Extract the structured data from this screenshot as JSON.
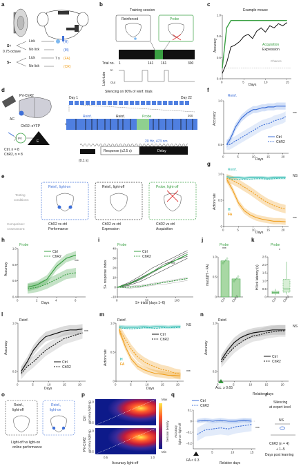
{
  "panels": {
    "a": {
      "label": "a",
      "s_plus": "S+",
      "s_minus": "S−",
      "octave": "0.75 octave",
      "lick": "Lick",
      "no_lick": "No lick",
      "hit": "(H)",
      "miss": "(M)",
      "fa": "(FA)",
      "cr": "(CR)",
      "timeout": "7 s"
    },
    "b": {
      "label": "b",
      "title": "Training session",
      "reinforced": "Reinforced",
      "probe": "Probe",
      "trial_no": "Trial no.",
      "t1": "1",
      "t141": "141",
      "t161": "161",
      "t300": "300",
      "lick_tube": "Lick-tube",
      "in": "In",
      "out": "Out"
    },
    "c": {
      "label": "c",
      "title": "Example mouse",
      "ylabel": "Accuracy",
      "xlabel": "Days",
      "acquisition": "Acquisition",
      "expression": "Expression",
      "chance": "Chance",
      "yticks": [
        "0.4",
        "0.6",
        "0.8",
        "1.0"
      ],
      "xticks": [
        "0",
        "5",
        "10",
        "15"
      ]
    },
    "d": {
      "label": "d",
      "pv_chr2": "PV-ChR2",
      "ac": "AC",
      "chr2_eyfp": "ChR2–eYFP",
      "pv": "PV",
      "e": "E",
      "ctrl_n": "Ctrl, n = 8",
      "chr2_n": "ChR2, n = 8",
      "silencing": "Silencing on 90% of reinf. trials",
      "day1": "Day 1",
      "day22": "Day 22",
      "reinf1": "Reinf.",
      "reinf2": "Reinf.",
      "probe": "Probe",
      "one": "1",
      "three_hundred": "300",
      "laser": "20 Hz, 473 nm",
      "response": "Response (≤2.5 s)",
      "delay": "Delay",
      "tick": "(0.1 s)"
    },
    "e": {
      "label": "e",
      "testing": "Testing",
      "conditions": "conditions:",
      "comparison": "Comparison:",
      "assessment": "Assessment:",
      "c1_title": "Reinf., light-on",
      "c2_title": "Reinf., light-off",
      "c3_title": "Probe, light-off",
      "c1_cmp": "ChR2 vs ctrl",
      "c1_ass": "Performance",
      "c2_cmp": "ChR2 vs ctrl",
      "c2_ass": "Expression",
      "c3_cmp": "ChR2 vs ctrl",
      "c3_ass": "Acquisition"
    },
    "f": {
      "label": "f",
      "tag": "Reinf.",
      "ylabel": "Accuracy",
      "xlabel": "Days",
      "ctrl": "Ctrl",
      "chr2": "ChR2",
      "sig": "***",
      "yticks": [
        "0.5",
        "1.0"
      ],
      "xticks": [
        "0",
        "5",
        "10",
        "15",
        "20"
      ]
    },
    "g": {
      "label": "g",
      "tag": "Reinf.",
      "ylabel": "Action rate",
      "xlabel": "Days",
      "h": "H",
      "fa": "FA",
      "ns": "NS",
      "sig": "***",
      "yticks": [
        "0",
        "0.5",
        "1.0"
      ],
      "xticks": [
        "0",
        "5",
        "10",
        "15",
        "20"
      ]
    },
    "h": {
      "label": "h",
      "tag": "Probe",
      "ylabel": "Accuracy",
      "xlabel": "Days",
      "ctrl": "Ctrl",
      "chr2": "ChR2",
      "sig": "***",
      "yticks": [
        "0.4",
        "0.6",
        "0.8",
        "1.0"
      ],
      "xticks": [
        "0",
        "2",
        "4",
        "6"
      ]
    },
    "i": {
      "label": "i",
      "tag": "Probe",
      "ylabel": "S+ response index",
      "xlabel": "S+ trials (days 1–6)",
      "ctrl": "Ctrl",
      "chr2": "ChR2",
      "sig": "***",
      "yticks": [
        "−10",
        "0",
        "10",
        "20",
        "30",
        "40"
      ],
      "xticks": [
        "0",
        "50",
        "100"
      ]
    },
    "j": {
      "label": "j",
      "tag": "Probe",
      "ylabel": "maxΔ(H − FA)",
      "sig": "***",
      "cats": [
        "Ctrl",
        "ChR2"
      ],
      "yticks": [
        "0",
        "0.5",
        "1.0"
      ]
    },
    "k": {
      "label": "k",
      "tag": "Probe",
      "ylabel": "H lick latency (s)",
      "sig": "*",
      "cats": [
        "Ctrl",
        "ChR2"
      ],
      "yticks": [
        "0",
        "0.5",
        "1.0",
        "1.5",
        "2.0",
        "2.5"
      ]
    },
    "l": {
      "label": "l",
      "tag": "Reinf.",
      "ylabel": "Accuracy",
      "xlabel": "Days",
      "ctrl": "Ctrl",
      "chr2": "ChR2",
      "sig": "***",
      "yticks": [
        "0.5",
        "1.0"
      ],
      "xticks": [
        "0",
        "5",
        "10",
        "15",
        "20"
      ]
    },
    "m": {
      "label": "m",
      "tag": "Reinf.",
      "ylabel": "Action rate",
      "xlabel": "Days",
      "ctrl": "Ctrl",
      "chr2": "ChR2",
      "h": "H",
      "fa": "FA",
      "ns": "NS",
      "sig": "***",
      "yticks": [
        "0",
        "0.5",
        "1.0"
      ],
      "xticks": [
        "0",
        "5",
        "10",
        "15",
        "20"
      ]
    },
    "n": {
      "label": "n",
      "tag": "Reinf.",
      "ylabel": "Accuracy",
      "xlabel": "Relative days",
      "ctrl": "Ctrl",
      "chr2": "ChR2",
      "ns": "NS",
      "acc": "Acc. ≥ 0.65",
      "yticks": [
        "0.5",
        "1.0"
      ],
      "xticks": [
        "0",
        "5",
        "10",
        "15",
        "20"
      ]
    },
    "o": {
      "label": "o",
      "c1": "Reinf.,",
      "c1b": "light-off",
      "c2": "Reinf.,",
      "c2b": "light-on",
      "caption1": "Light-off vs light-on",
      "caption2": "online performance"
    },
    "p": {
      "label": "p",
      "xlabel": "Accuracy light-off",
      "ctrl": "Ctrl",
      "pv": "PV-ChR2",
      "ylabel1": "Accuracy light-on",
      "ylabel2": "Accuracy light-on",
      "max": "Max",
      "min": "Min",
      "density": "Session density",
      "xticks": [
        "0.5",
        "1.0"
      ],
      "yticks1": [
        "0.5",
        "1.0"
      ],
      "yticks2": [
        "0.5",
        "1.0"
      ]
    },
    "q": {
      "label": "q",
      "ctrl": "Ctrl",
      "chr2": "ChR2",
      "ylabel1": "Accuracy",
      "ylabel2": "light-on−light-off",
      "xlabel": "Relative days",
      "fa": "FA < 0.3",
      "sig": "***",
      "yticks": [
        "−0.2",
        "−0.1",
        "0",
        "0.1"
      ],
      "xticks": [
        "5",
        "10",
        "15"
      ]
    },
    "r": {
      "label": "r",
      "title1": "Silencing",
      "title2": "at expert level",
      "ns": "NS",
      "chr2n": "ChR2 (n = 4)",
      "days": "+ 1–5",
      "post": "Days post learning"
    }
  },
  "chart_data": [
    {
      "panel": "c",
      "type": "line",
      "xlabel": "Days",
      "ylabel": "Accuracy",
      "xlim": [
        0,
        16
      ],
      "ylim": [
        0.4,
        1.0
      ],
      "series": [
        {
          "name": "Acquisition",
          "x": [
            0,
            1,
            2,
            3,
            4,
            5,
            6,
            7,
            8,
            9,
            10,
            11,
            12,
            13,
            14,
            15
          ],
          "values": [
            0.5,
            0.88,
            0.95,
            0.95,
            0.95,
            0.95,
            0.95,
            0.95,
            0.95,
            0.95,
            0.95,
            0.95,
            0.95,
            0.95,
            0.95,
            0.95
          ]
        },
        {
          "name": "Expression",
          "x": [
            0,
            1,
            2,
            3,
            4,
            5,
            6,
            7,
            8,
            9,
            10,
            11,
            12,
            13,
            14,
            15
          ],
          "values": [
            0.45,
            0.55,
            0.7,
            0.72,
            0.75,
            0.8,
            0.82,
            0.78,
            0.85,
            0.88,
            0.84,
            0.9,
            0.88,
            0.92,
            0.9,
            0.93
          ]
        }
      ],
      "chance": 0.5
    },
    {
      "panel": "f",
      "type": "line",
      "xlabel": "Days",
      "ylabel": "Accuracy",
      "xlim": [
        0,
        22
      ],
      "ylim": [
        0.4,
        1.0
      ],
      "series": [
        {
          "name": "Ctrl",
          "x": [
            1,
            2,
            3,
            4,
            5,
            6,
            7,
            8,
            9,
            10,
            11,
            12,
            13,
            14,
            15,
            16,
            17,
            18,
            19,
            20,
            21
          ],
          "values": [
            0.5,
            0.55,
            0.62,
            0.7,
            0.75,
            0.8,
            0.83,
            0.86,
            0.88,
            0.9,
            0.9,
            0.91,
            0.92,
            0.92,
            0.93,
            0.93,
            0.93,
            0.94,
            0.94,
            0.94,
            0.94
          ]
        },
        {
          "name": "ChR2",
          "x": [
            1,
            2,
            3,
            4,
            5,
            6,
            7,
            8,
            9,
            10,
            11,
            12,
            13,
            14,
            15,
            16,
            17,
            18,
            19,
            20,
            21
          ],
          "values": [
            0.5,
            0.5,
            0.52,
            0.54,
            0.56,
            0.58,
            0.6,
            0.62,
            0.64,
            0.66,
            0.68,
            0.7,
            0.72,
            0.73,
            0.74,
            0.75,
            0.77,
            0.78,
            0.79,
            0.8,
            0.82
          ]
        }
      ]
    },
    {
      "panel": "g",
      "type": "line",
      "xlabel": "Days",
      "ylabel": "Action rate",
      "xlim": [
        0,
        22
      ],
      "ylim": [
        0,
        1.0
      ],
      "series": [
        {
          "name": "H ctrl",
          "x": [
            1,
            3,
            5,
            7,
            9,
            11,
            13,
            15,
            17,
            19,
            21
          ],
          "values": [
            0.95,
            0.93,
            0.93,
            0.92,
            0.93,
            0.93,
            0.93,
            0.92,
            0.93,
            0.93,
            0.93
          ]
        },
        {
          "name": "H ChR2",
          "x": [
            1,
            3,
            5,
            7,
            9,
            11,
            13,
            15,
            17,
            19,
            21
          ],
          "values": [
            0.92,
            0.9,
            0.9,
            0.9,
            0.9,
            0.91,
            0.91,
            0.9,
            0.91,
            0.92,
            0.92
          ]
        },
        {
          "name": "FA ctrl",
          "x": [
            1,
            3,
            5,
            7,
            9,
            11,
            13,
            15,
            17,
            19,
            21
          ],
          "values": [
            0.9,
            0.7,
            0.45,
            0.3,
            0.22,
            0.17,
            0.14,
            0.12,
            0.1,
            0.1,
            0.09
          ]
        },
        {
          "name": "FA ChR2",
          "x": [
            1,
            3,
            5,
            7,
            9,
            11,
            13,
            15,
            17,
            19,
            21
          ],
          "values": [
            0.92,
            0.88,
            0.82,
            0.75,
            0.68,
            0.6,
            0.52,
            0.45,
            0.4,
            0.36,
            0.33
          ]
        }
      ]
    },
    {
      "panel": "h",
      "type": "line",
      "xlabel": "Days",
      "ylabel": "Accuracy",
      "xlim": [
        0,
        7
      ],
      "ylim": [
        0.4,
        1.0
      ],
      "series": [
        {
          "name": "Ctrl",
          "x": [
            1,
            2,
            3,
            4,
            5,
            6
          ],
          "values": [
            0.52,
            0.55,
            0.62,
            0.78,
            0.88,
            0.92
          ]
        },
        {
          "name": "ChR2",
          "x": [
            1,
            2,
            3,
            4,
            5,
            6
          ],
          "values": [
            0.5,
            0.52,
            0.56,
            0.62,
            0.68,
            0.7
          ]
        }
      ]
    },
    {
      "panel": "j",
      "type": "bar",
      "categories": [
        "Ctrl",
        "ChR2"
      ],
      "ylabel": "maxΔ(H − FA)",
      "values": [
        0.9,
        0.45
      ],
      "ylim": [
        0,
        1.0
      ]
    },
    {
      "panel": "l",
      "type": "line",
      "xlabel": "Days",
      "ylabel": "Accuracy",
      "xlim": [
        0,
        22
      ],
      "ylim": [
        0.4,
        1.0
      ],
      "series": [
        {
          "name": "Ctrl",
          "x": [
            1,
            3,
            5,
            7,
            9,
            11,
            13,
            15,
            17,
            19,
            21
          ],
          "values": [
            0.5,
            0.6,
            0.72,
            0.8,
            0.86,
            0.88,
            0.9,
            0.92,
            0.93,
            0.93,
            0.94
          ]
        },
        {
          "name": "ChR2",
          "x": [
            1,
            3,
            5,
            7,
            9,
            11,
            13,
            15,
            17,
            19,
            21
          ],
          "values": [
            0.48,
            0.55,
            0.6,
            0.66,
            0.72,
            0.76,
            0.8,
            0.84,
            0.86,
            0.88,
            0.9
          ]
        }
      ]
    },
    {
      "panel": "n",
      "type": "line",
      "xlabel": "Relative days",
      "ylabel": "Accuracy",
      "xlim": [
        0,
        22
      ],
      "ylim": [
        0.4,
        1.0
      ],
      "series": [
        {
          "name": "Ctrl",
          "x": [
            1,
            3,
            5,
            7,
            9,
            11,
            13,
            15,
            17,
            19,
            21
          ],
          "values": [
            0.62,
            0.72,
            0.8,
            0.85,
            0.88,
            0.9,
            0.91,
            0.92,
            0.93,
            0.93,
            0.93
          ]
        },
        {
          "name": "ChR2",
          "x": [
            1,
            3,
            5,
            7,
            9,
            11,
            13,
            15,
            17,
            19,
            21
          ],
          "values": [
            0.6,
            0.68,
            0.75,
            0.8,
            0.84,
            0.87,
            0.88,
            0.9,
            0.91,
            0.92,
            0.92
          ]
        }
      ]
    },
    {
      "panel": "q",
      "type": "line",
      "xlabel": "Relative days",
      "ylabel": "Accuracy light-on−light-off",
      "xlim": [
        0,
        16
      ],
      "ylim": [
        -0.25,
        0.1
      ],
      "series": [
        {
          "name": "Ctrl",
          "x": [
            1,
            3,
            5,
            7,
            9,
            11,
            13,
            15
          ],
          "values": [
            0.0,
            0.01,
            0.0,
            0.01,
            0.0,
            0.0,
            0.01,
            0.0
          ]
        },
        {
          "name": "ChR2",
          "x": [
            1,
            3,
            5,
            7,
            9,
            11,
            13,
            15
          ],
          "values": [
            -0.12,
            -0.08,
            -0.07,
            -0.06,
            -0.07,
            -0.05,
            -0.04,
            -0.03
          ]
        }
      ]
    }
  ]
}
